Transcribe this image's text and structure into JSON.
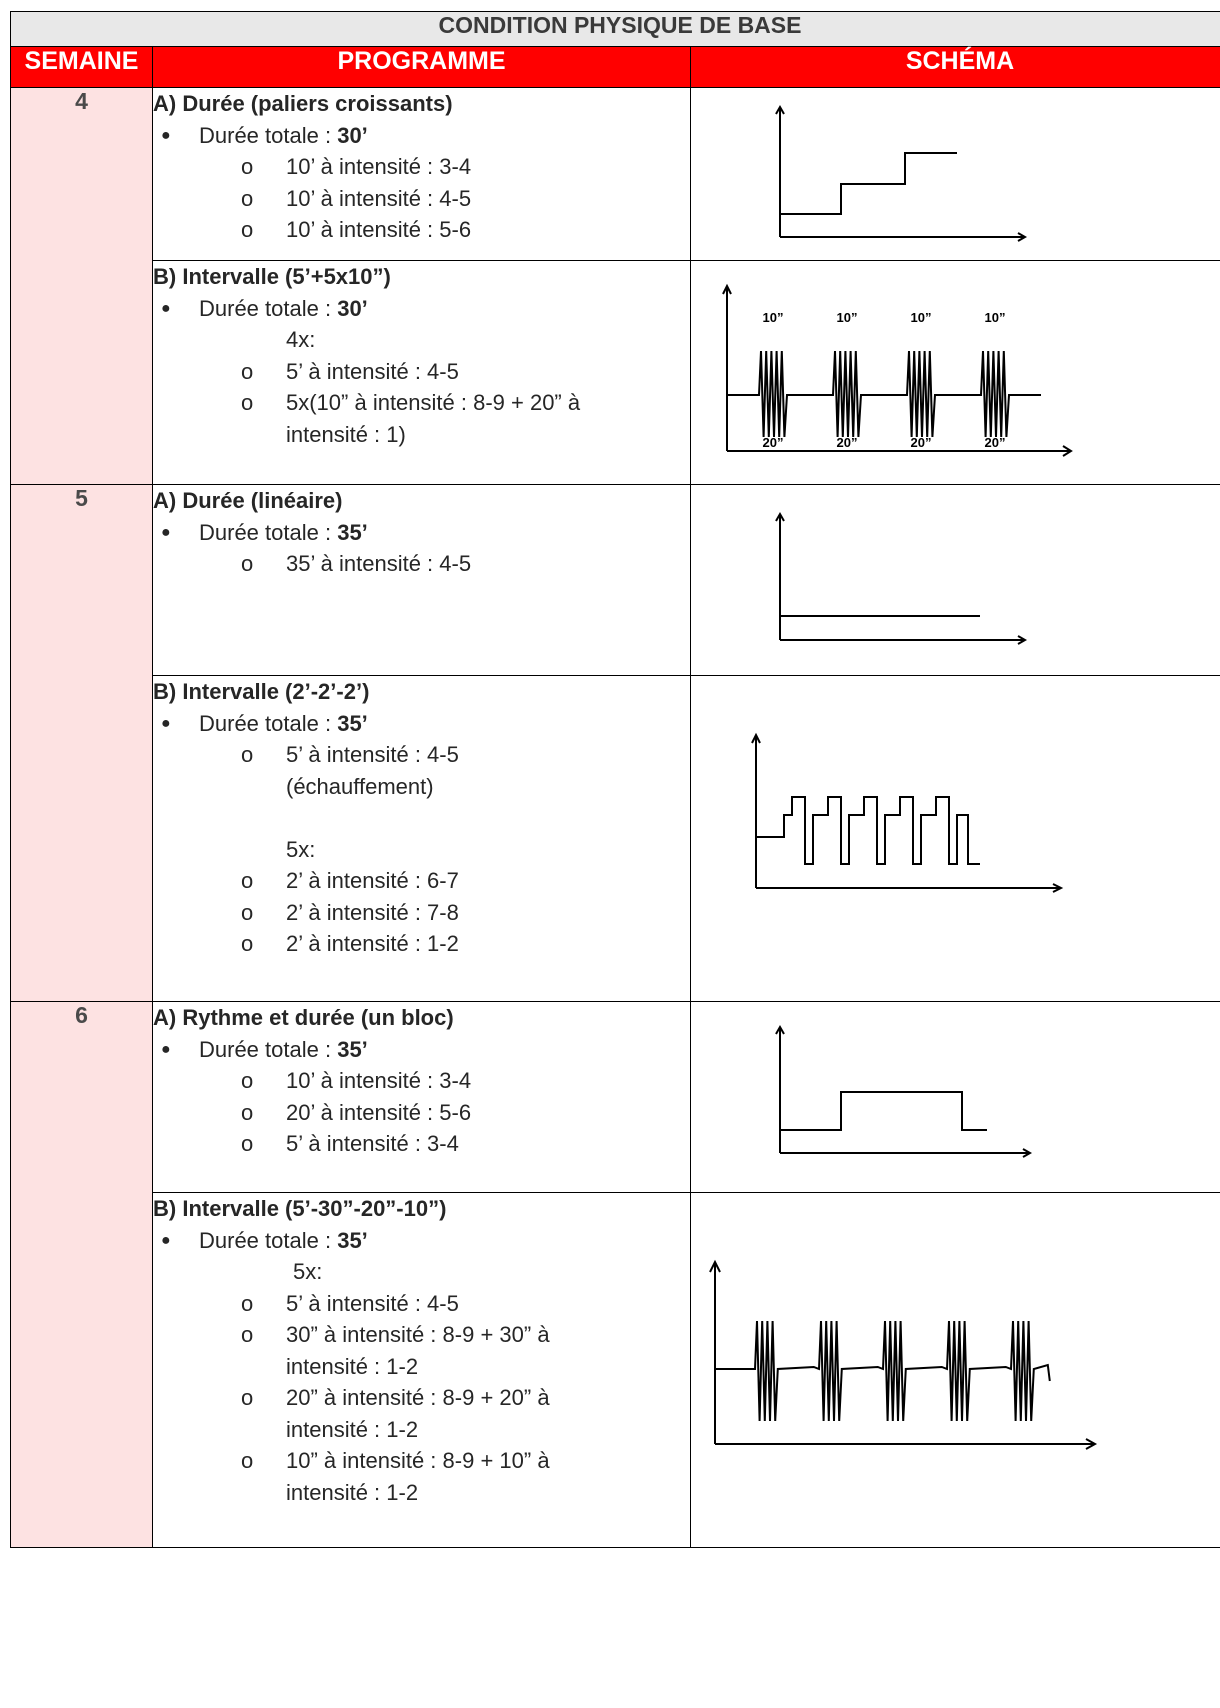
{
  "table": {
    "title": "CONDITION PHYSIQUE DE BASE",
    "headers": {
      "week": "SEMAINE",
      "program": "PROGRAMME",
      "schema": "SCHÉMA"
    }
  },
  "weeks": [
    {
      "week": "4",
      "sessions": [
        {
          "title": "A) Durée (paliers croissants)",
          "total_label": "Durée totale : ",
          "total_value": "30’",
          "items": [
            "10’ à intensité : 3-4",
            "10’ à intensité : 4-5",
            "10’ à intensité : 5-6"
          ]
        },
        {
          "title": "B) Intervalle (5’+5x10”)",
          "total_label": "Durée totale : ",
          "total_value": "30’",
          "repeat": "4x:",
          "items": [
            "5’ à intensité : 4-5",
            "5x(10” à intensité : 8-9 + 20” à"
          ],
          "continuation": "intensité : 1)",
          "schema_labels": {
            "top": "10”",
            "bottom": "20”"
          }
        }
      ]
    },
    {
      "week": "5",
      "sessions": [
        {
          "title": "A) Durée (linéaire)",
          "total_label": "Durée totale : ",
          "total_value": "35’",
          "items": [
            "35’ à intensité : 4-5"
          ]
        },
        {
          "title": "B) Intervalle (2’-2’-2’)",
          "total_label": "Durée totale : ",
          "total_value": "35’",
          "items": [
            "5’ à intensité : 4-5"
          ],
          "continuation": "(échauffement)",
          "repeat": "5x:",
          "items_after": [
            "2’ à intensité : 6-7",
            "2’ à intensité : 7-8",
            "2’ à intensité : 1-2"
          ]
        }
      ]
    },
    {
      "week": "6",
      "sessions": [
        {
          "title": "A) Rythme et durée (un bloc)",
          "total_label": "Durée totale : ",
          "total_value": "35’",
          "items": [
            "10’ à intensité : 3-4",
            "20’ à intensité : 5-6",
            "5’ à intensité : 3-4"
          ]
        },
        {
          "title": "B) Intervalle (5’-30”-20”-10”)",
          "total_label": "Durée totale : ",
          "total_value": "35’",
          "repeat": "5x:",
          "items": [
            "5’ à intensité : 4-5",
            "30” à intensité : 8-9 + 30” à",
            "20” à intensité : 8-9 + 20” à",
            "10” à intensité : 8-9 + 10” à"
          ],
          "continuations": [
            "intensité : 1-2",
            "intensité : 1-2",
            "intensité : 1-2"
          ]
        }
      ]
    }
  ],
  "marks": {
    "bullet": "●",
    "sub": "o"
  }
}
